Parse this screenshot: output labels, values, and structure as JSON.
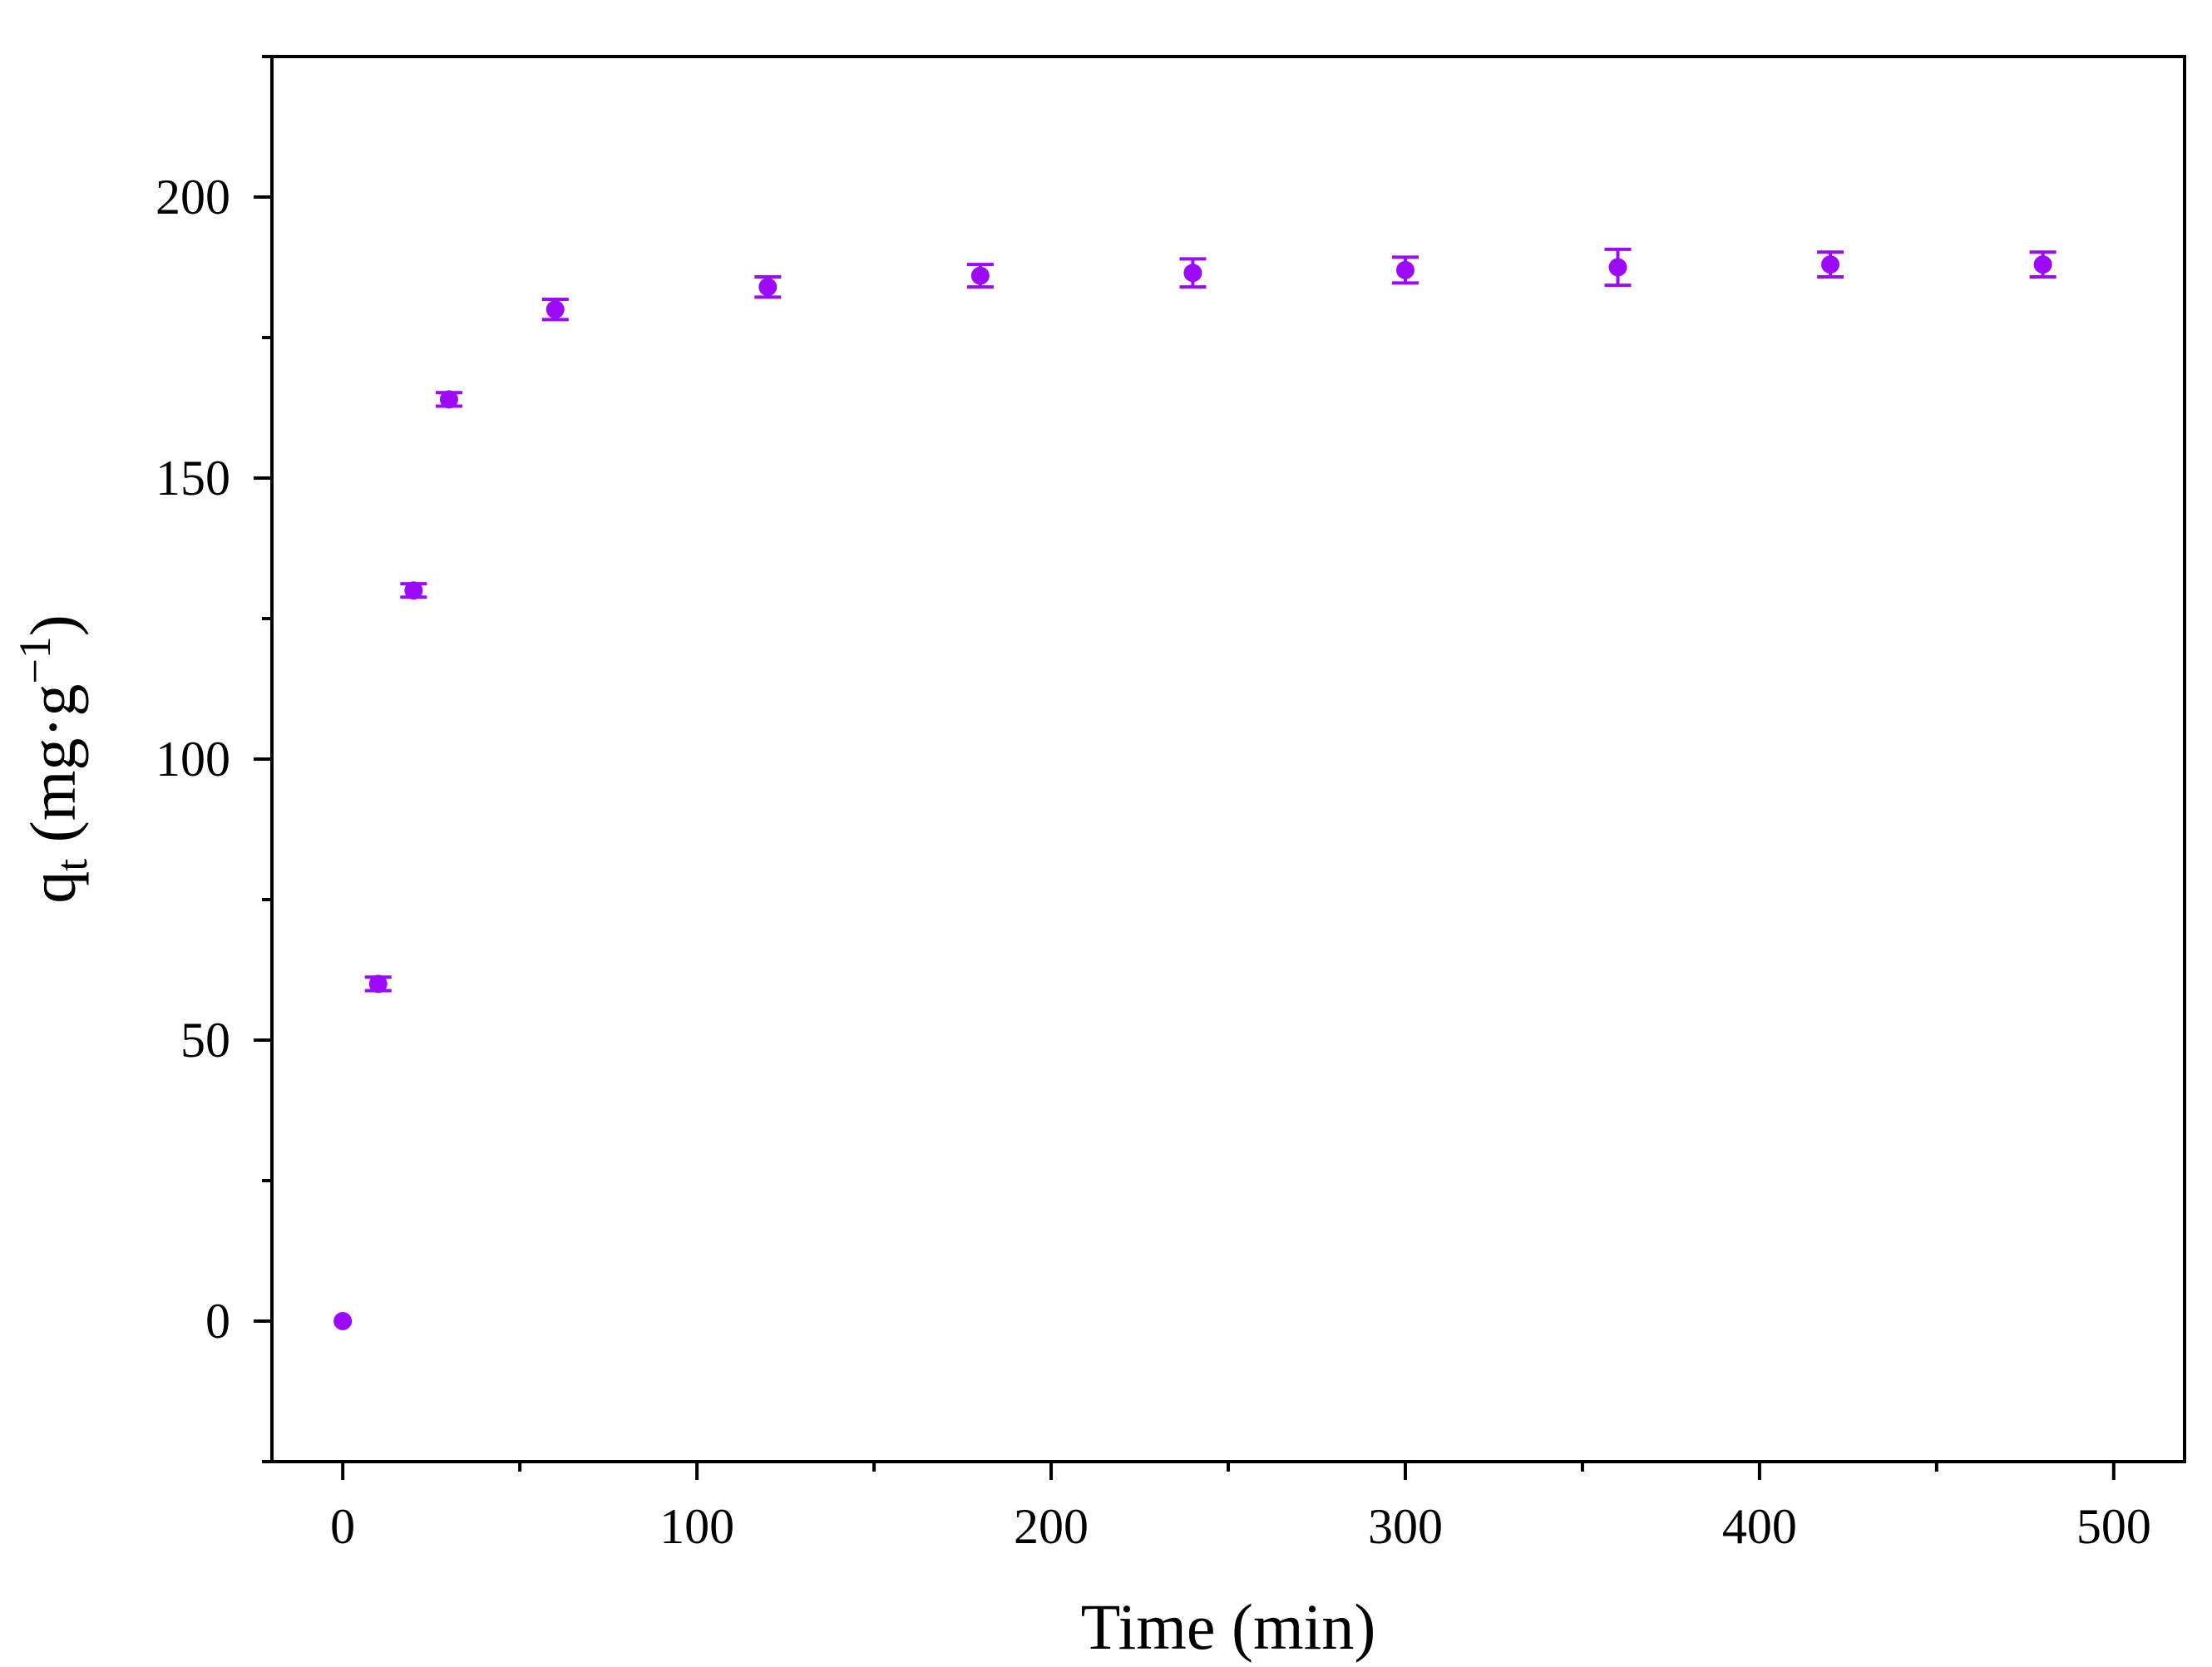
{
  "chart_data": {
    "type": "scatter",
    "xlabel": "Time (min)",
    "ylabel": {
      "main": "q",
      "subscript": "t",
      "unit_open": " (mg·g",
      "superscript": "−1",
      "unit_close": ")"
    },
    "xlim": [
      -20,
      520
    ],
    "ylim": [
      -25,
      225
    ],
    "x_ticks": [
      0,
      100,
      200,
      300,
      400,
      500
    ],
    "x_minor_ticks": [
      50,
      150,
      250,
      350,
      450
    ],
    "y_ticks": [
      0,
      50,
      100,
      150,
      200
    ],
    "y_minor_ticks": [
      -25,
      25,
      75,
      125,
      175,
      225
    ],
    "grid": false,
    "legend": "none",
    "marker_color": "#9B0BF5",
    "series": [
      {
        "x": [
          0,
          10,
          20,
          30,
          60,
          120,
          180,
          240,
          300,
          360,
          420,
          480
        ],
        "y": [
          0,
          60,
          130,
          164,
          180,
          184,
          186,
          186.5,
          187,
          187.5,
          188,
          188
        ],
        "error": [
          0,
          1.2,
          1.2,
          1.2,
          1.8,
          1.8,
          2.0,
          2.5,
          2.3,
          3.2,
          2.2,
          2.2
        ]
      }
    ]
  }
}
